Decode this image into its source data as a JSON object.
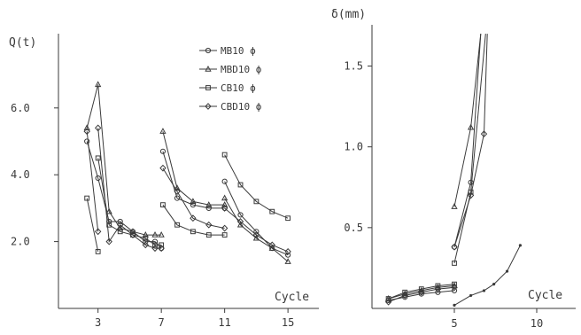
{
  "chart_data": [
    {
      "type": "line",
      "ylabel": "Q(t)",
      "xlabel": "Cycle",
      "xticks": [
        3,
        7,
        11,
        15
      ],
      "yticks": [
        2.0,
        4.0,
        6.0
      ],
      "ytick_labels": [
        "2.0",
        "4.0",
        "6.0"
      ],
      "xlim": [
        0.5,
        16
      ],
      "ylim": [
        0,
        8.5
      ],
      "grid": false,
      "legend_position": "top-right",
      "series": [
        {
          "name": "MB10 ϕ",
          "marker": "o",
          "segments": [
            [
              [
                2.3,
                5.0
              ],
              [
                3.0,
                3.9
              ],
              [
                3.7,
                2.6
              ],
              [
                4.4,
                2.6
              ],
              [
                5.2,
                2.3
              ],
              [
                6.0,
                2.0
              ],
              [
                6.6,
                2.0
              ],
              [
                7.0,
                1.8
              ]
            ],
            [
              [
                7.1,
                4.7
              ],
              [
                8.0,
                3.3
              ],
              [
                9.0,
                3.1
              ],
              [
                10.0,
                3.0
              ],
              [
                11.0,
                3.0
              ]
            ],
            [
              [
                11.0,
                3.8
              ],
              [
                12.0,
                2.8
              ],
              [
                13.0,
                2.3
              ],
              [
                14.0,
                1.8
              ],
              [
                15.0,
                1.6
              ]
            ]
          ]
        },
        {
          "name": "MBD10 ϕ",
          "marker": "triangle",
          "segments": [
            [
              [
                2.3,
                5.4
              ],
              [
                3.0,
                6.7
              ],
              [
                3.7,
                2.9
              ],
              [
                4.4,
                2.4
              ],
              [
                5.2,
                2.3
              ],
              [
                6.0,
                2.2
              ],
              [
                6.6,
                2.2
              ],
              [
                7.0,
                2.2
              ]
            ],
            [
              [
                7.1,
                5.3
              ],
              [
                8.0,
                3.6
              ],
              [
                9.0,
                3.2
              ],
              [
                10.0,
                3.1
              ],
              [
                11.0,
                3.1
              ]
            ],
            [
              [
                11.0,
                3.3
              ],
              [
                12.0,
                2.5
              ],
              [
                13.0,
                2.1
              ],
              [
                14.0,
                1.8
              ],
              [
                15.0,
                1.4
              ]
            ]
          ]
        },
        {
          "name": "CB10 ϕ",
          "marker": "square",
          "segments": [
            [
              [
                2.3,
                3.3
              ],
              [
                3.0,
                1.7
              ]
            ],
            [
              [
                3.0,
                4.5
              ],
              [
                3.7,
                2.5
              ],
              [
                4.4,
                2.3
              ],
              [
                5.2,
                2.2
              ],
              [
                6.0,
                2.1
              ],
              [
                6.6,
                1.9
              ],
              [
                7.0,
                1.9
              ]
            ],
            [
              [
                7.1,
                3.1
              ],
              [
                8.0,
                2.5
              ],
              [
                9.0,
                2.3
              ],
              [
                10.0,
                2.2
              ],
              [
                11.0,
                2.2
              ]
            ],
            [
              [
                11.0,
                4.6
              ],
              [
                12.0,
                3.7
              ],
              [
                13.0,
                3.2
              ],
              [
                14.0,
                2.9
              ],
              [
                15.0,
                2.7
              ]
            ]
          ]
        },
        {
          "name": "CBD10 ϕ",
          "marker": "diamond",
          "segments": [
            [
              [
                2.3,
                5.3
              ],
              [
                3.0,
                2.3
              ]
            ],
            [
              [
                3.0,
                5.4
              ],
              [
                3.7,
                2.0
              ],
              [
                4.4,
                2.5
              ],
              [
                5.2,
                2.2
              ],
              [
                6.0,
                1.9
              ],
              [
                6.6,
                1.8
              ],
              [
                7.0,
                1.8
              ]
            ],
            [
              [
                7.1,
                4.2
              ],
              [
                8.0,
                3.5
              ],
              [
                9.0,
                2.7
              ],
              [
                10.0,
                2.5
              ],
              [
                11.0,
                2.4
              ]
            ],
            [
              [
                11.0,
                3.0
              ],
              [
                12.0,
                2.6
              ],
              [
                13.0,
                2.2
              ],
              [
                14.0,
                1.9
              ],
              [
                15.0,
                1.7
              ]
            ]
          ]
        }
      ]
    },
    {
      "type": "line",
      "ylabel": "δ(mm)",
      "xlabel": "Cycle",
      "xticks": [
        5,
        10
      ],
      "yticks": [
        0.5,
        1.0,
        1.5
      ],
      "ytick_labels": [
        "0.5",
        "1.0",
        "1.5"
      ],
      "xlim": [
        0,
        12
      ],
      "ylim": [
        0,
        1.7
      ],
      "grid": false,
      "series": [
        {
          "marker": "o",
          "points": [
            [
              1,
              0.05
            ],
            [
              2,
              0.07
            ],
            [
              3,
              0.09
            ],
            [
              4,
              0.1
            ],
            [
              5,
              0.11
            ]
          ]
        },
        {
          "marker": "triangle",
          "points": [
            [
              1,
              0.06
            ],
            [
              2,
              0.09
            ],
            [
              3,
              0.11
            ],
            [
              4,
              0.13
            ],
            [
              5,
              0.14
            ]
          ]
        },
        {
          "marker": "square",
          "points": [
            [
              1,
              0.06
            ],
            [
              2,
              0.1
            ],
            [
              3,
              0.12
            ],
            [
              4,
              0.14
            ],
            [
              5,
              0.15
            ]
          ]
        },
        {
          "marker": "diamond",
          "points": [
            [
              1,
              0.04
            ],
            [
              2,
              0.08
            ],
            [
              3,
              0.1
            ],
            [
              4,
              0.12
            ],
            [
              5,
              0.13
            ]
          ]
        },
        {
          "marker": "o",
          "points": [
            [
              5,
              0.38
            ],
            [
              6,
              0.78
            ],
            [
              6.6,
              1.7
            ]
          ]
        },
        {
          "marker": "triangle",
          "points": [
            [
              5,
              0.63
            ],
            [
              6,
              1.12
            ],
            [
              6.6,
              1.7
            ]
          ]
        },
        {
          "marker": "square",
          "points": [
            [
              5,
              0.28
            ],
            [
              6,
              0.72
            ],
            [
              6.9,
              1.7
            ]
          ]
        },
        {
          "marker": "diamond",
          "points": [
            [
              5,
              0.38
            ],
            [
              6,
              0.7
            ],
            [
              6.8,
              1.08
            ],
            [
              7.0,
              1.7
            ]
          ]
        },
        {
          "marker": "dot",
          "points": [
            [
              5,
              0.02
            ],
            [
              6,
              0.08
            ],
            [
              6.8,
              0.11
            ],
            [
              7.4,
              0.15
            ],
            [
              8.2,
              0.23
            ],
            [
              9.0,
              0.39
            ]
          ]
        }
      ]
    }
  ]
}
